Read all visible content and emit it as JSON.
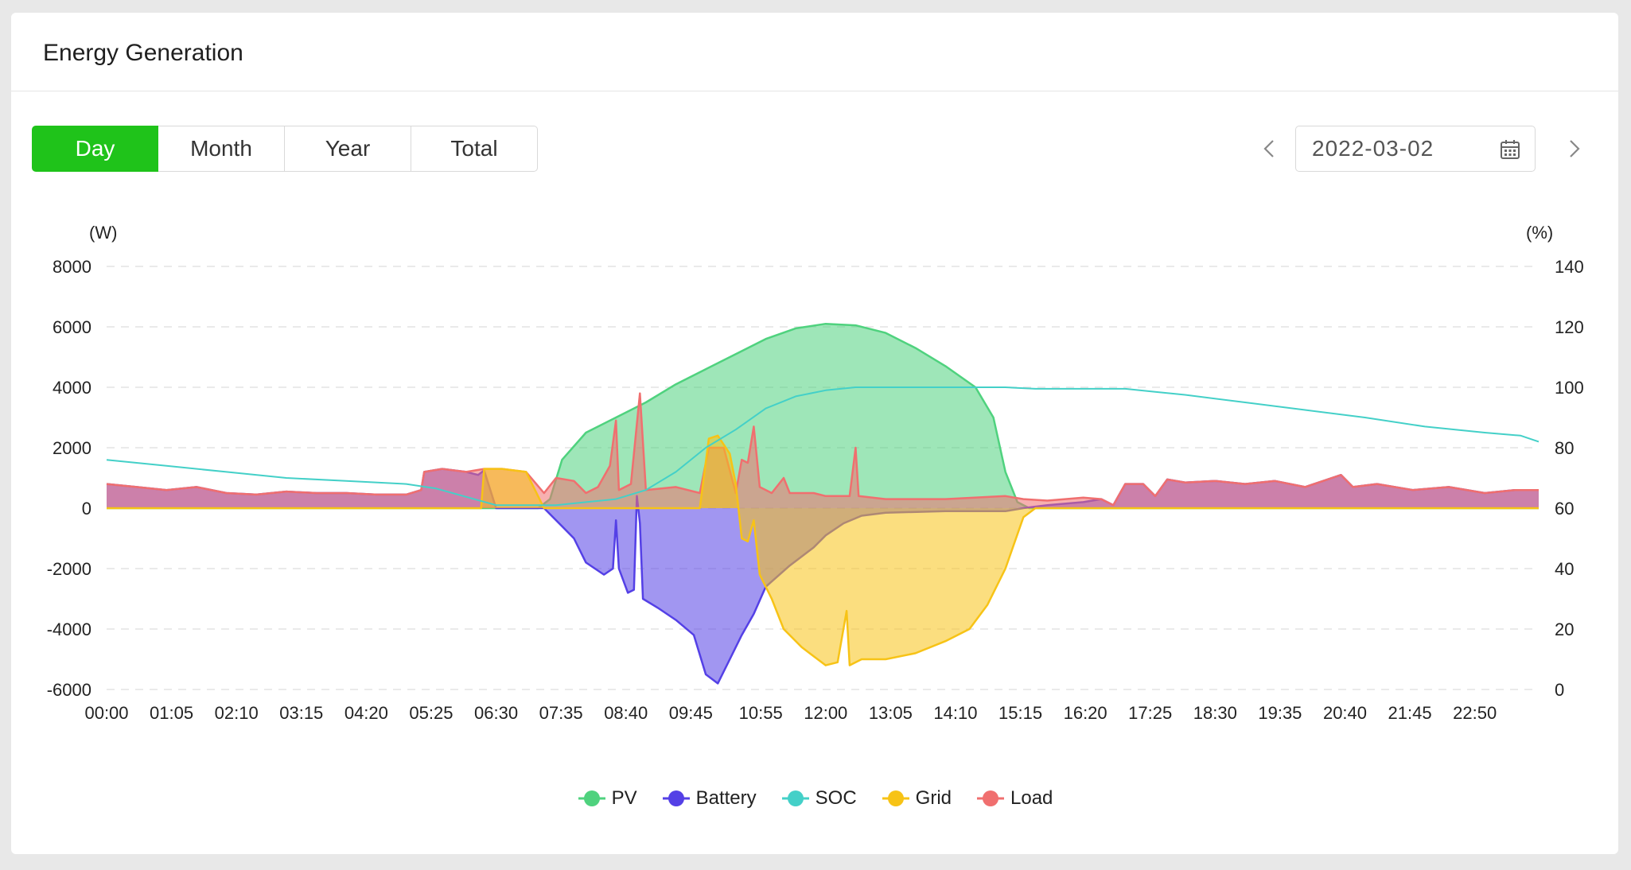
{
  "header": {
    "title": "Energy Generation"
  },
  "period_tabs": [
    {
      "label": "Day",
      "active": true
    },
    {
      "label": "Month",
      "active": false
    },
    {
      "label": "Year",
      "active": false
    },
    {
      "label": "Total",
      "active": false
    }
  ],
  "date_picker": {
    "value": "2022-03-02",
    "icon": "calendar-icon"
  },
  "nav_icons": {
    "prev": "chevron-left-icon",
    "next": "chevron-right-icon"
  },
  "colors": {
    "active_tab": "#1fc31a",
    "pv": "#4fd27e",
    "battery": "#5440e6",
    "soc": "#44d0c8",
    "grid": "#f7c316",
    "load": "#f06f6f"
  },
  "chart_data": {
    "type": "area",
    "left_unit": "(W)",
    "right_unit": "(%)",
    "left_ticks": [
      "8000",
      "6000",
      "4000",
      "2000",
      "0",
      "-2000",
      "-4000",
      "-6000"
    ],
    "right_ticks": [
      "140",
      "120",
      "100",
      "80",
      "60",
      "40",
      "20",
      "0"
    ],
    "ylim_left": [
      -6000,
      8000
    ],
    "ylim_right": [
      0,
      140
    ],
    "x_ticks": [
      "00:00",
      "01:05",
      "02:10",
      "03:15",
      "04:20",
      "05:25",
      "06:30",
      "07:35",
      "08:40",
      "09:45",
      "10:55",
      "12:00",
      "13:05",
      "14:10",
      "15:15",
      "16:20",
      "17:25",
      "18:30",
      "19:35",
      "20:40",
      "21:45",
      "22:50"
    ],
    "xlim_hours": [
      0,
      23.9
    ],
    "grid": "horizontal-dashed",
    "legend_position": "bottom-center",
    "series": [
      {
        "name": "PV",
        "axis": "left",
        "points": [
          [
            0,
            0
          ],
          [
            7.2,
            0
          ],
          [
            7.4,
            300
          ],
          [
            7.6,
            1600
          ],
          [
            8.0,
            2500
          ],
          [
            8.5,
            3000
          ],
          [
            9.0,
            3500
          ],
          [
            9.5,
            4100
          ],
          [
            10.0,
            4600
          ],
          [
            10.5,
            5100
          ],
          [
            11.0,
            5600
          ],
          [
            11.5,
            5950
          ],
          [
            12.0,
            6100
          ],
          [
            12.5,
            6050
          ],
          [
            13.0,
            5800
          ],
          [
            13.5,
            5300
          ],
          [
            14.0,
            4700
          ],
          [
            14.5,
            4000
          ],
          [
            14.8,
            3000
          ],
          [
            15.0,
            1200
          ],
          [
            15.2,
            200
          ],
          [
            15.4,
            0
          ],
          [
            23.9,
            0
          ]
        ]
      },
      {
        "name": "Battery",
        "axis": "left",
        "points": [
          [
            0,
            800
          ],
          [
            0.5,
            700
          ],
          [
            1,
            600
          ],
          [
            1.5,
            700
          ],
          [
            2,
            500
          ],
          [
            2.5,
            450
          ],
          [
            3,
            550
          ],
          [
            3.5,
            500
          ],
          [
            4,
            500
          ],
          [
            4.5,
            450
          ],
          [
            5,
            450
          ],
          [
            5.25,
            600
          ],
          [
            5.3,
            1200
          ],
          [
            5.6,
            1300
          ],
          [
            6.0,
            1200
          ],
          [
            6.2,
            1100
          ],
          [
            6.3,
            1250
          ],
          [
            6.5,
            0
          ],
          [
            7.3,
            0
          ],
          [
            7.6,
            -600
          ],
          [
            7.8,
            -1000
          ],
          [
            8.0,
            -1800
          ],
          [
            8.3,
            -2200
          ],
          [
            8.45,
            -2000
          ],
          [
            8.5,
            -400
          ],
          [
            8.55,
            -2000
          ],
          [
            8.7,
            -2800
          ],
          [
            8.8,
            -2700
          ],
          [
            8.85,
            400
          ],
          [
            8.9,
            -500
          ],
          [
            8.95,
            -3000
          ],
          [
            9.2,
            -3300
          ],
          [
            9.5,
            -3700
          ],
          [
            9.8,
            -4200
          ],
          [
            10.0,
            -5500
          ],
          [
            10.2,
            -5800
          ],
          [
            10.4,
            -5000
          ],
          [
            10.6,
            -4200
          ],
          [
            10.8,
            -3500
          ],
          [
            11.0,
            -2600
          ],
          [
            11.4,
            -1900
          ],
          [
            11.8,
            -1300
          ],
          [
            12.0,
            -900
          ],
          [
            12.3,
            -500
          ],
          [
            12.6,
            -250
          ],
          [
            13.0,
            -150
          ],
          [
            14.0,
            -100
          ],
          [
            15.0,
            -100
          ],
          [
            15.3,
            0
          ],
          [
            15.7,
            100
          ],
          [
            16.3,
            200
          ],
          [
            16.6,
            300
          ],
          [
            16.8,
            100
          ],
          [
            17.0,
            800
          ],
          [
            17.3,
            800
          ],
          [
            17.5,
            400
          ],
          [
            17.7,
            950
          ],
          [
            18.0,
            850
          ],
          [
            18.5,
            900
          ],
          [
            19.0,
            800
          ],
          [
            19.5,
            900
          ],
          [
            20.0,
            700
          ],
          [
            20.3,
            900
          ],
          [
            20.6,
            1100
          ],
          [
            20.8,
            700
          ],
          [
            21.2,
            800
          ],
          [
            21.8,
            600
          ],
          [
            22.4,
            700
          ],
          [
            23.0,
            500
          ],
          [
            23.5,
            600
          ],
          [
            23.9,
            600
          ]
        ]
      },
      {
        "name": "SOC",
        "axis": "right",
        "points": [
          [
            0,
            76
          ],
          [
            0.5,
            75
          ],
          [
            1,
            74
          ],
          [
            2,
            72
          ],
          [
            3,
            70
          ],
          [
            4,
            69
          ],
          [
            5,
            68
          ],
          [
            5.5,
            66.5
          ],
          [
            6.5,
            61
          ],
          [
            7.5,
            61
          ],
          [
            8.0,
            62
          ],
          [
            8.5,
            63
          ],
          [
            9.0,
            66
          ],
          [
            9.5,
            72
          ],
          [
            10.0,
            80
          ],
          [
            10.5,
            86
          ],
          [
            11.0,
            93
          ],
          [
            11.5,
            97
          ],
          [
            12.0,
            99
          ],
          [
            12.5,
            100
          ],
          [
            13.0,
            100
          ],
          [
            14.0,
            100
          ],
          [
            15.0,
            100
          ],
          [
            15.5,
            99.5
          ],
          [
            16.0,
            99.5
          ],
          [
            17.0,
            99.5
          ],
          [
            17.5,
            98.5
          ],
          [
            18.0,
            97.5
          ],
          [
            19.0,
            95
          ],
          [
            20.0,
            92.5
          ],
          [
            21.0,
            90
          ],
          [
            22.0,
            87
          ],
          [
            23.0,
            85
          ],
          [
            23.6,
            84
          ],
          [
            23.9,
            82
          ]
        ]
      },
      {
        "name": "Grid",
        "axis": "left",
        "points": [
          [
            0,
            0
          ],
          [
            6.25,
            0
          ],
          [
            6.3,
            1300
          ],
          [
            6.6,
            1300
          ],
          [
            7.0,
            1200
          ],
          [
            7.3,
            0
          ],
          [
            9.9,
            0
          ],
          [
            10.05,
            2300
          ],
          [
            10.2,
            2400
          ],
          [
            10.4,
            1800
          ],
          [
            10.5,
            800
          ],
          [
            10.6,
            -1000
          ],
          [
            10.7,
            -1100
          ],
          [
            10.8,
            -400
          ],
          [
            10.9,
            -2200
          ],
          [
            11.1,
            -3000
          ],
          [
            11.3,
            -4000
          ],
          [
            11.6,
            -4600
          ],
          [
            11.8,
            -4900
          ],
          [
            12.0,
            -5200
          ],
          [
            12.2,
            -5100
          ],
          [
            12.35,
            -3400
          ],
          [
            12.4,
            -5200
          ],
          [
            12.6,
            -5000
          ],
          [
            13.0,
            -5000
          ],
          [
            13.5,
            -4800
          ],
          [
            14.0,
            -4400
          ],
          [
            14.4,
            -4000
          ],
          [
            14.7,
            -3200
          ],
          [
            15.0,
            -2000
          ],
          [
            15.3,
            -300
          ],
          [
            15.5,
            0
          ],
          [
            23.9,
            0
          ]
        ]
      },
      {
        "name": "Load",
        "axis": "left",
        "points": [
          [
            0,
            800
          ],
          [
            0.5,
            700
          ],
          [
            1,
            600
          ],
          [
            1.5,
            700
          ],
          [
            2,
            500
          ],
          [
            2.5,
            450
          ],
          [
            3,
            550
          ],
          [
            3.5,
            500
          ],
          [
            4,
            500
          ],
          [
            4.5,
            450
          ],
          [
            5,
            450
          ],
          [
            5.25,
            600
          ],
          [
            5.3,
            1200
          ],
          [
            5.6,
            1300
          ],
          [
            6.0,
            1200
          ],
          [
            6.3,
            1300
          ],
          [
            6.6,
            1300
          ],
          [
            7.0,
            1200
          ],
          [
            7.3,
            500
          ],
          [
            7.5,
            1000
          ],
          [
            7.8,
            900
          ],
          [
            8.0,
            500
          ],
          [
            8.2,
            700
          ],
          [
            8.4,
            1400
          ],
          [
            8.5,
            2900
          ],
          [
            8.55,
            600
          ],
          [
            8.75,
            800
          ],
          [
            8.9,
            3800
          ],
          [
            9.0,
            600
          ],
          [
            9.5,
            700
          ],
          [
            9.9,
            500
          ],
          [
            10.05,
            2000
          ],
          [
            10.3,
            2000
          ],
          [
            10.5,
            500
          ],
          [
            10.6,
            1600
          ],
          [
            10.7,
            1500
          ],
          [
            10.8,
            2700
          ],
          [
            10.9,
            700
          ],
          [
            11.1,
            500
          ],
          [
            11.3,
            1000
          ],
          [
            11.4,
            500
          ],
          [
            11.8,
            500
          ],
          [
            12.0,
            400
          ],
          [
            12.4,
            400
          ],
          [
            12.5,
            2000
          ],
          [
            12.55,
            400
          ],
          [
            13.0,
            300
          ],
          [
            14.0,
            300
          ],
          [
            15.0,
            400
          ],
          [
            15.3,
            300
          ],
          [
            15.7,
            250
          ],
          [
            16.3,
            350
          ],
          [
            16.6,
            300
          ],
          [
            16.8,
            100
          ],
          [
            17.0,
            800
          ],
          [
            17.3,
            800
          ],
          [
            17.5,
            400
          ],
          [
            17.7,
            950
          ],
          [
            18.0,
            850
          ],
          [
            18.5,
            900
          ],
          [
            19.0,
            800
          ],
          [
            19.5,
            900
          ],
          [
            20.0,
            700
          ],
          [
            20.3,
            900
          ],
          [
            20.6,
            1100
          ],
          [
            20.8,
            700
          ],
          [
            21.2,
            800
          ],
          [
            21.8,
            600
          ],
          [
            22.4,
            700
          ],
          [
            23.0,
            500
          ],
          [
            23.5,
            600
          ],
          [
            23.9,
            600
          ]
        ]
      }
    ]
  }
}
